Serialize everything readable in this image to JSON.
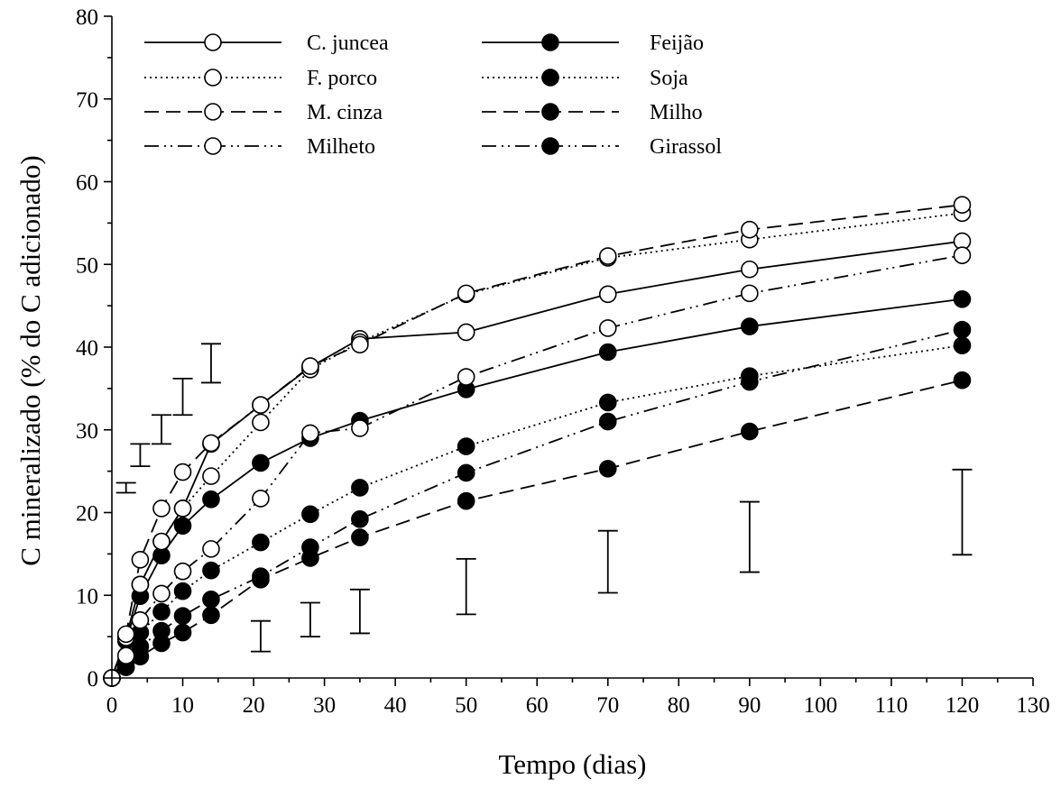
{
  "chart_data": {
    "type": "line",
    "xlabel": "Tempo (dias)",
    "ylabel": "C mineralizado (% do C adicionado)",
    "xlim": [
      0,
      130
    ],
    "ylim": [
      0,
      80
    ],
    "xticks": [
      0,
      10,
      20,
      30,
      40,
      50,
      60,
      70,
      80,
      90,
      100,
      110,
      120,
      130
    ],
    "yticks": [
      0,
      10,
      20,
      30,
      40,
      50,
      60,
      70,
      80
    ],
    "x": [
      0,
      2,
      4,
      7,
      10,
      14,
      21,
      28,
      35,
      50,
      70,
      90,
      120
    ],
    "legend_position": "top-left",
    "series": [
      {
        "name": "C. juncea",
        "marker": "open",
        "line": "solid",
        "values": [
          0,
          4.9,
          11.3,
          16.5,
          20.5,
          28.3,
          33.0,
          37.6,
          41.0,
          41.8,
          46.4,
          49.4,
          52.8
        ]
      },
      {
        "name": "F. porco",
        "marker": "open",
        "line": "dotted",
        "values": [
          0,
          4.9,
          11.3,
          16.5,
          20.5,
          24.4,
          30.9,
          37.3,
          40.6,
          46.4,
          50.8,
          53.0,
          56.2
        ]
      },
      {
        "name": "M. cinza",
        "marker": "open",
        "line": "dashed",
        "values": [
          0,
          5.3,
          14.3,
          20.5,
          24.9,
          28.4,
          33.0,
          37.7,
          40.3,
          46.5,
          51.0,
          54.2,
          57.2
        ]
      },
      {
        "name": "Milheto",
        "marker": "open",
        "line": "dashdotdot",
        "values": [
          0,
          2.7,
          7.0,
          10.2,
          12.9,
          15.6,
          21.7,
          29.6,
          30.2,
          36.4,
          42.3,
          46.5,
          51.1
        ]
      },
      {
        "name": "Feijão",
        "marker": "filled",
        "line": "solid",
        "values": [
          0,
          4.5,
          9.9,
          14.8,
          18.4,
          21.6,
          26.0,
          29.0,
          31.1,
          34.9,
          39.4,
          42.5,
          45.8
        ]
      },
      {
        "name": "Soja",
        "marker": "filled",
        "line": "dotted",
        "values": [
          0,
          2.0,
          5.5,
          8.0,
          10.5,
          13.0,
          16.4,
          19.8,
          23.0,
          28.0,
          33.3,
          36.5,
          40.2
        ]
      },
      {
        "name": "Milho",
        "marker": "filled",
        "line": "dashed",
        "values": [
          0,
          1.3,
          2.6,
          4.2,
          5.5,
          7.6,
          11.9,
          14.5,
          17.0,
          21.4,
          25.3,
          29.8,
          36.0
        ]
      },
      {
        "name": "Girassol",
        "marker": "filled",
        "line": "dashdotdot",
        "values": [
          0,
          2.0,
          3.8,
          5.7,
          7.5,
          9.5,
          12.3,
          15.8,
          19.2,
          24.8,
          31.0,
          35.8,
          42.1
        ]
      }
    ],
    "error_bars": [
      {
        "x": 2,
        "low": 22.4,
        "high": 23.6
      },
      {
        "x": 4,
        "low": 25.6,
        "high": 28.3
      },
      {
        "x": 7,
        "low": 28.3,
        "high": 31.8
      },
      {
        "x": 10,
        "low": 31.8,
        "high": 36.2
      },
      {
        "x": 14,
        "low": 35.7,
        "high": 40.4
      },
      {
        "x": 21,
        "low": 3.2,
        "high": 6.9
      },
      {
        "x": 28,
        "low": 5.0,
        "high": 9.1
      },
      {
        "x": 35,
        "low": 5.4,
        "high": 10.7
      },
      {
        "x": 50,
        "low": 7.7,
        "high": 14.4
      },
      {
        "x": 70,
        "low": 10.3,
        "high": 17.8
      },
      {
        "x": 90,
        "low": 12.8,
        "high": 21.3
      },
      {
        "x": 120,
        "low": 14.9,
        "high": 25.2
      }
    ]
  }
}
